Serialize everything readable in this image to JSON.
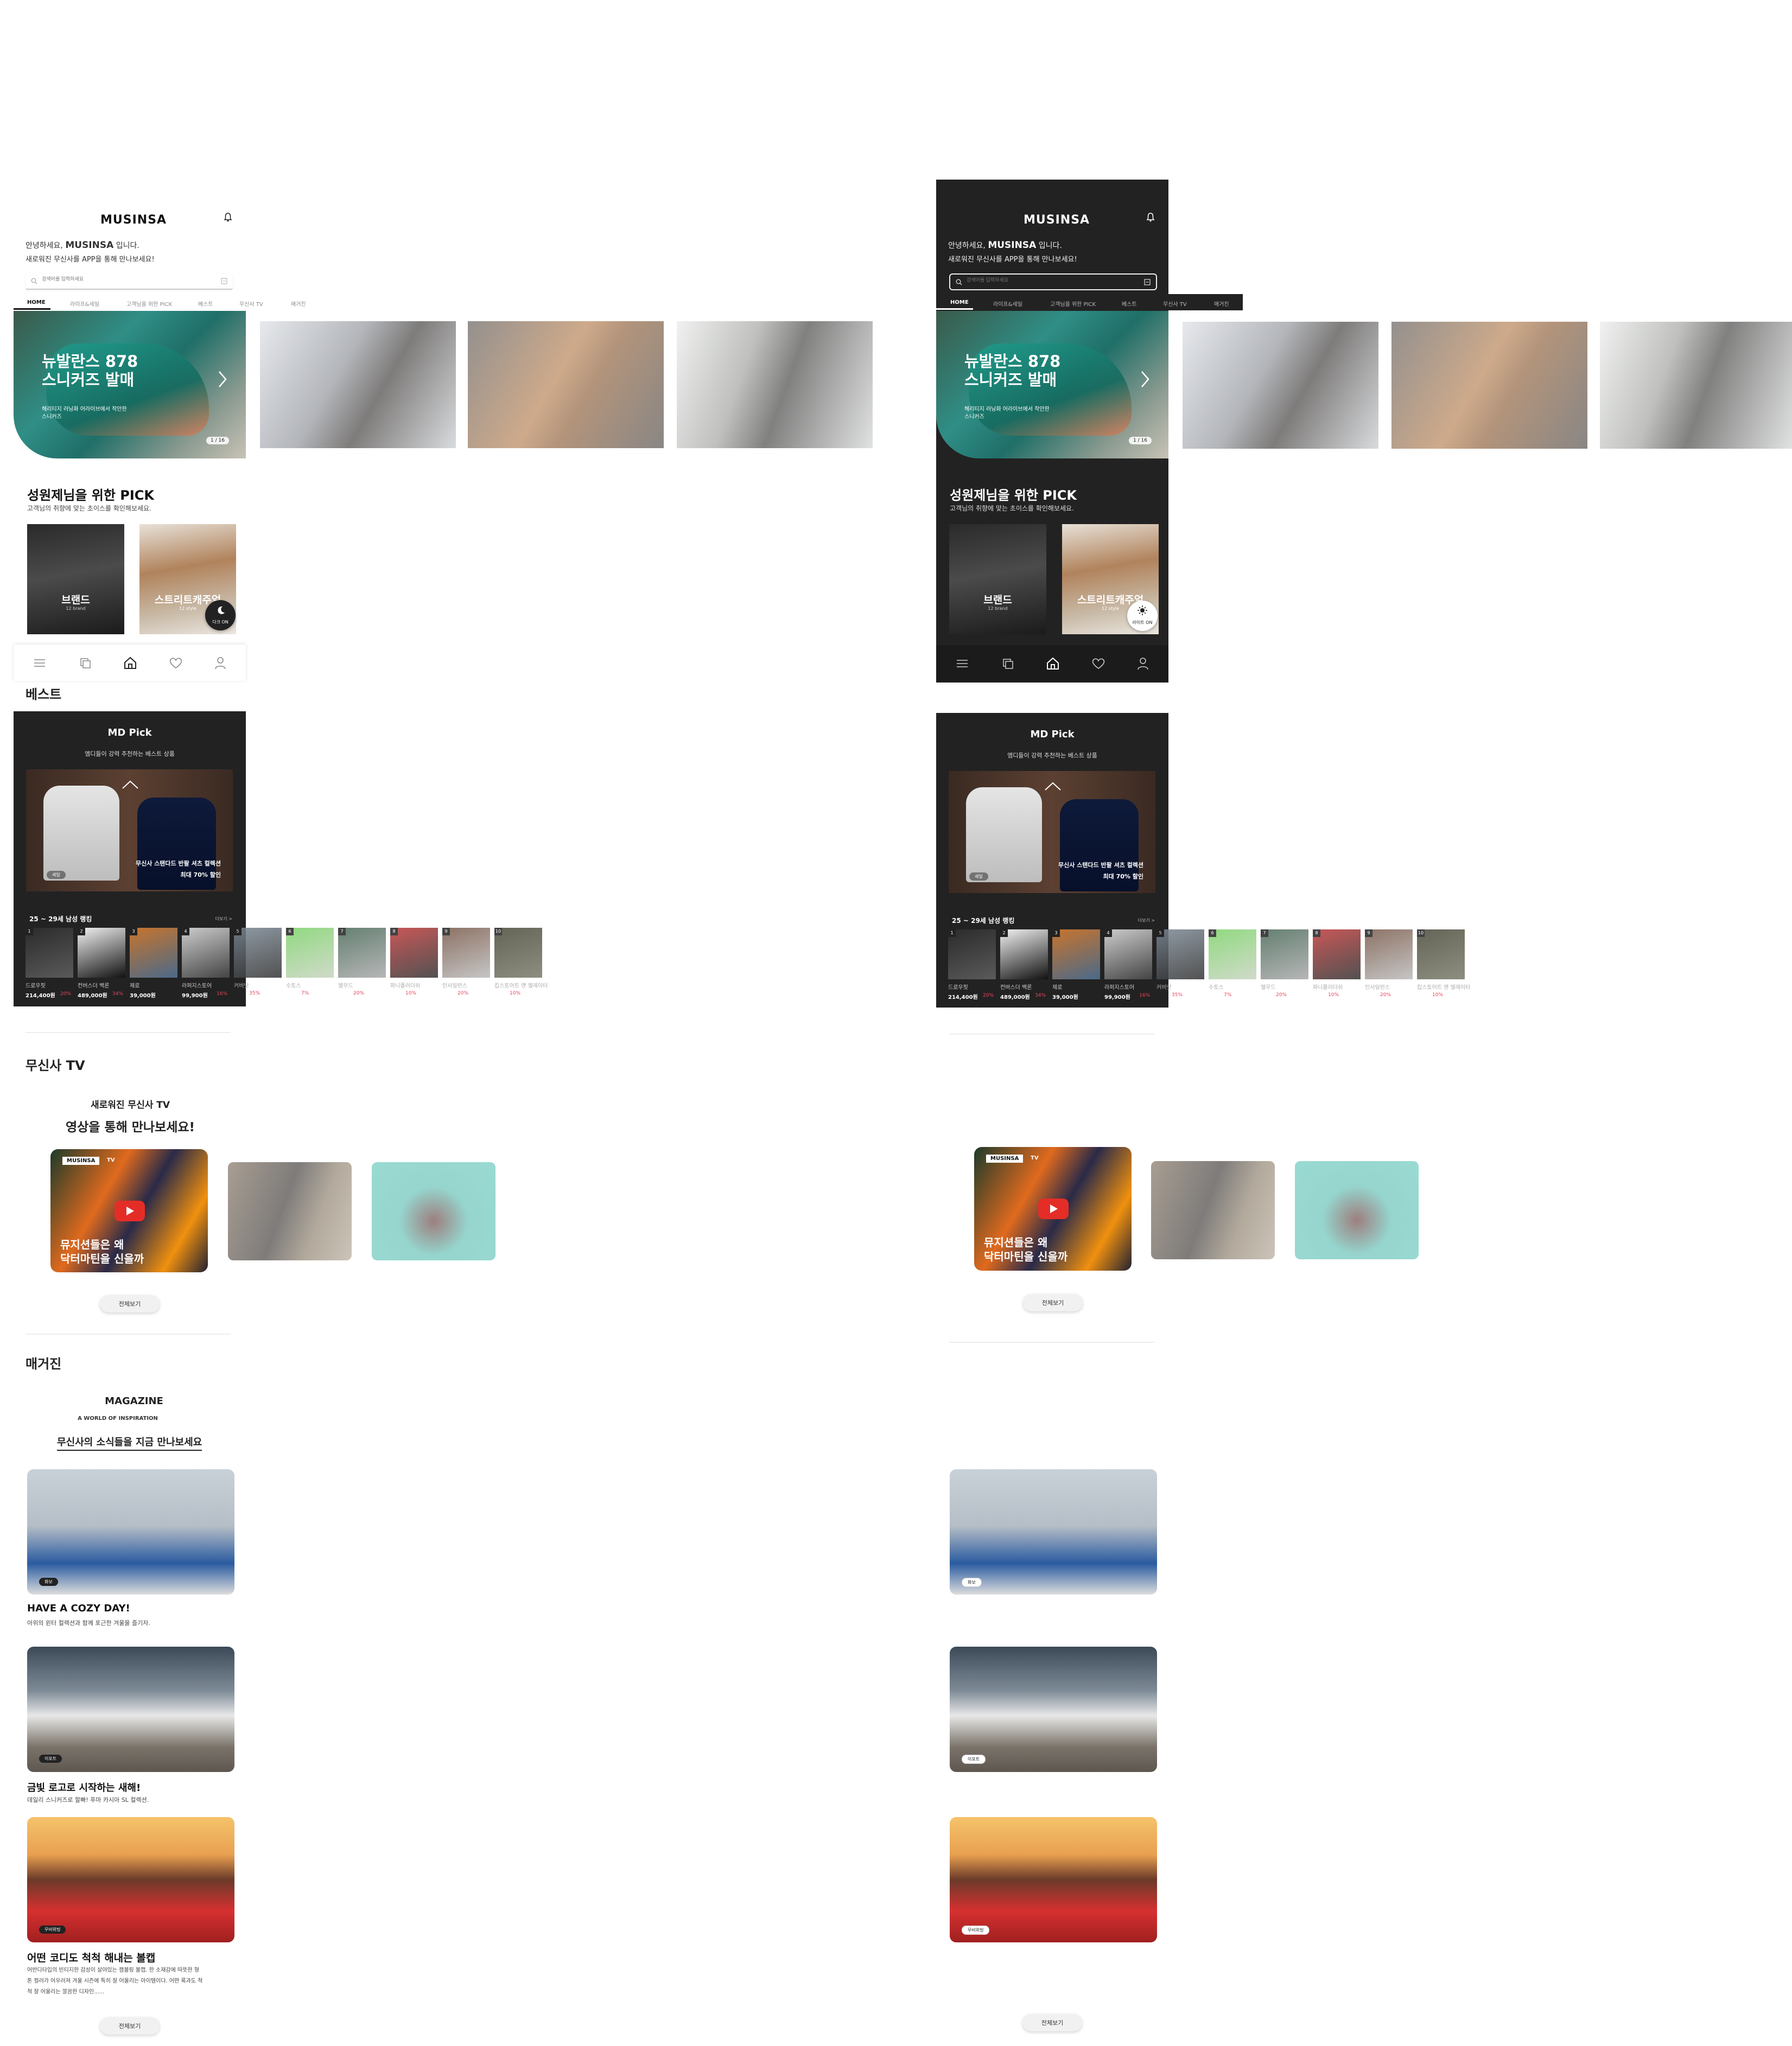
{
  "app": {
    "logo": "MUSINSA",
    "greeting_prefix": "안녕하세요,",
    "greeting_brand": "MUSINSA",
    "greeting_suffix": "입니다.",
    "greeting_line2": "새로워진 무신사를 APP을 통해 만나보세요!",
    "search_placeholder": "검색어를 입력하세요"
  },
  "tabs": [
    "HOME",
    "라이프&세일",
    "고객님을 위한 PICK",
    "베스트",
    "무신사 TV",
    "매거진"
  ],
  "banner": {
    "title_line1": "뉴발란스 878",
    "title_line2": "스니커즈 발매",
    "subtitle_line1": "헤리티지 러닝화 어라이브에서 착안한",
    "subtitle_line2": "스니커즈",
    "counter": "1 / 16"
  },
  "pick": {
    "title": "성원제님을 위한 PICK",
    "subtitle": "고객님의 취향에 맞는 초이스를 확인해보세요.",
    "cards": [
      {
        "label": "브랜드",
        "sub": "12 brand"
      },
      {
        "label": "스트리트캐주얼",
        "sub": "12 style"
      }
    ],
    "dark_toggle_light": "다크 ON",
    "dark_toggle_dark": "라이트 ON"
  },
  "best": {
    "title": "베스트",
    "md_title": "MD Pick",
    "md_subtitle": "엠디들이 강력 추천하는 베스트 상품",
    "md_tag": "세일",
    "md_product_line1": "무신사 스탠다드 반팔 셔츠 컬렉션",
    "md_product_line2": "최대 70% 할인",
    "ranking_title": "25 ~ 29세 남성 랭킹",
    "ranking_more": "더보기 >",
    "ranking": [
      {
        "rank": "1",
        "name": "드로우핏",
        "price": "214,400원",
        "disc": "20%"
      },
      {
        "rank": "2",
        "name": "컨버스더 백론",
        "price": "489,000원",
        "disc": "34%"
      },
      {
        "rank": "3",
        "name": "제로",
        "price": "39,000원",
        "disc": ""
      },
      {
        "rank": "4",
        "name": "라퍼지스토어",
        "price": "99,900원",
        "disc": "16%"
      },
      {
        "rank": "5",
        "name": "커버낫",
        "price": "",
        "disc": "35%"
      },
      {
        "rank": "6",
        "name": "수토스",
        "price": "",
        "disc": "7%"
      },
      {
        "rank": "7",
        "name": "엘무드",
        "price": "",
        "disc": "20%"
      },
      {
        "rank": "8",
        "name": "파니플러더쉬",
        "price": "",
        "disc": "10%"
      },
      {
        "rank": "9",
        "name": "인사일런스",
        "price": "",
        "disc": "20%"
      },
      {
        "rank": "10",
        "name": "킵스토어트 앤 엘레이터",
        "price": "",
        "disc": "10%"
      }
    ]
  },
  "tv": {
    "title": "무신사 TV",
    "sub1": "새로워진 무신사 TV",
    "sub2": "영상을 통해 만나보세요!",
    "video_badge": "MUSINSA",
    "video_badge2": "TV",
    "video_title_line1": "뮤지션들은 왜",
    "video_title_line2": "닥터마틴을 신을까",
    "more": "전체보기"
  },
  "magazine": {
    "title": "매거진",
    "head1": "MAGAZINE",
    "head2": "A WORLD OF INSPIRATION",
    "head3": "무신사의 소식들을 지금 만나보세요",
    "articles": [
      {
        "tag": "화보",
        "title": "HAVE A COZY DAY!",
        "desc": "아위의 윈터 컬렉션과 함께 포근한 겨울을 즐기자."
      },
      {
        "tag": "이포트",
        "title": "금빛 로고로 시작하는 새해!",
        "desc": "데일리 스니커즈로 할빠! 푸마 카시아 SL 컬렉션."
      },
      {
        "tag": "무비위빙",
        "title": "어떤 코디도 척척 해내는 볼캡",
        "desc": "어반디타입의 빈티지한 감성이 살아있는 캠볼링 볼캡. 한 소재감에 따뜻한 형",
        "desc2": "톤 컬러가 어우러져 겨울 시즌에 특히 잘 어울리는 아이템이다. 어떤 룩과도 척",
        "desc3": "척 잘 어울리는 깔끔한 디자인......"
      }
    ],
    "more": "전체보기"
  },
  "colors": {
    "dark_bg": "#222222",
    "accent_red": "#e8455a",
    "page_bg": "#ffffff"
  }
}
